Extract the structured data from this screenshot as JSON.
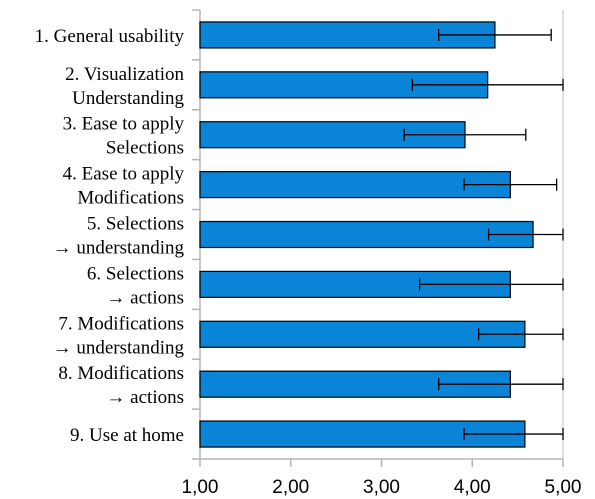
{
  "chart_data": {
    "type": "bar",
    "orientation": "horizontal",
    "title": "",
    "xlabel": "",
    "ylabel": "",
    "xlim": [
      1,
      5
    ],
    "x_ticks": [
      "1,00",
      "2,00",
      "3,00",
      "4,00",
      "5,00"
    ],
    "grid": false,
    "bar_color": "#0a84d6",
    "bar_edge_color": "#000000",
    "categories": [
      [
        "1. General usability"
      ],
      [
        "2. Visualization",
        "Understanding"
      ],
      [
        "3. Ease to apply",
        "Selections"
      ],
      [
        "4. Ease to apply",
        "Modifications"
      ],
      [
        "5. Selections",
        "→ understanding"
      ],
      [
        "6. Selections",
        "→ actions"
      ],
      [
        "7. Modifications",
        "→ understanding"
      ],
      [
        "8. Modifications",
        "→ actions"
      ],
      [
        "9. Use at home"
      ]
    ],
    "values": [
      4.25,
      4.17,
      3.92,
      4.42,
      4.67,
      4.42,
      4.58,
      4.42,
      4.58
    ],
    "error_low": [
      3.63,
      3.34,
      3.25,
      3.91,
      4.18,
      3.42,
      4.07,
      3.63,
      3.91
    ],
    "error_high": [
      4.87,
      5.0,
      4.59,
      4.93,
      5.0,
      5.0,
      5.0,
      5.0,
      5.0
    ]
  }
}
